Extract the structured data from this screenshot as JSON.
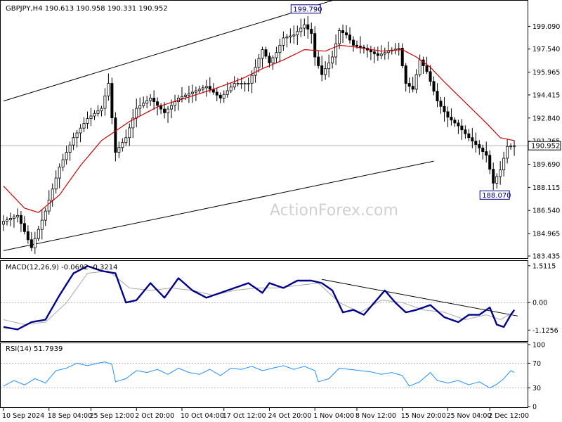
{
  "chart_data": [
    {
      "type": "candlestick",
      "symbol_header": "GBPJPY,H4  190.613 190.958 190.331 190.952",
      "ylim": [
        183.435,
        200.5
      ],
      "y_ticks": [
        "199.090",
        "197.540",
        "195.965",
        "194.415",
        "192.840",
        "191.265",
        "189.690",
        "188.115",
        "186.540",
        "184.965",
        "183.435"
      ],
      "current_price": "190.952",
      "watermark": "ActionForex.com",
      "annotations": [
        {
          "text": "199.790",
          "value": 199.79,
          "index": 86
        },
        {
          "text": "188.070",
          "value": 188.07,
          "index": 140
        }
      ],
      "channel_upper": [
        {
          "index": 0,
          "value": 194.0
        },
        {
          "index": 118,
          "value": 202.6
        }
      ],
      "channel_lower": [
        {
          "index": 0,
          "value": 183.8
        },
        {
          "index": 123,
          "value": 189.9
        }
      ],
      "ma_color": "#cc0000",
      "series_color": "#000000",
      "waypoints": [
        [
          0,
          185.8
        ],
        [
          4,
          186.2
        ],
        [
          8,
          184.0
        ],
        [
          12,
          186.5
        ],
        [
          16,
          189.5
        ],
        [
          20,
          191.5
        ],
        [
          24,
          192.8
        ],
        [
          28,
          193.5
        ],
        [
          30,
          195.2
        ],
        [
          32,
          190.5
        ],
        [
          35,
          191.5
        ],
        [
          38,
          193.5
        ],
        [
          42,
          194.2
        ],
        [
          46,
          193.2
        ],
        [
          50,
          194.2
        ],
        [
          54,
          194.6
        ],
        [
          58,
          195.0
        ],
        [
          62,
          194.2
        ],
        [
          66,
          195.2
        ],
        [
          70,
          195.2
        ],
        [
          72,
          196.3
        ],
        [
          74,
          197.5
        ],
        [
          76,
          196.6
        ],
        [
          78,
          197.3
        ],
        [
          80,
          198.3
        ],
        [
          83,
          198.5
        ],
        [
          86,
          199.2
        ],
        [
          88,
          198.6
        ],
        [
          89,
          197.0
        ],
        [
          91,
          195.8
        ],
        [
          94,
          197.0
        ],
        [
          96,
          198.8
        ],
        [
          98,
          198.5
        ],
        [
          100,
          197.8
        ],
        [
          103,
          197.6
        ],
        [
          107,
          197.1
        ],
        [
          110,
          197.4
        ],
        [
          113,
          197.6
        ],
        [
          115,
          195.2
        ],
        [
          117,
          194.8
        ],
        [
          119,
          196.8
        ],
        [
          121,
          196.0
        ],
        [
          124,
          194.0
        ],
        [
          127,
          192.9
        ],
        [
          130,
          192.3
        ],
        [
          133,
          191.5
        ],
        [
          136,
          190.8
        ],
        [
          138,
          190.3
        ],
        [
          140,
          188.4
        ],
        [
          142,
          189.3
        ],
        [
          144,
          190.9
        ],
        [
          146,
          190.95
        ]
      ],
      "ma_waypoints": [
        [
          0,
          188.2
        ],
        [
          6,
          186.7
        ],
        [
          10,
          186.4
        ],
        [
          16,
          187.6
        ],
        [
          22,
          189.6
        ],
        [
          28,
          191.3
        ],
        [
          36,
          192.6
        ],
        [
          44,
          193.6
        ],
        [
          52,
          194.2
        ],
        [
          60,
          194.8
        ],
        [
          68,
          195.5
        ],
        [
          74,
          196.2
        ],
        [
          80,
          196.8
        ],
        [
          86,
          197.5
        ],
        [
          92,
          197.4
        ],
        [
          96,
          197.8
        ],
        [
          100,
          197.7
        ],
        [
          108,
          197.4
        ],
        [
          114,
          197.5
        ],
        [
          118,
          197.0
        ],
        [
          122,
          196.3
        ],
        [
          126,
          195.3
        ],
        [
          132,
          193.9
        ],
        [
          138,
          192.5
        ],
        [
          142,
          191.5
        ],
        [
          146,
          191.3
        ]
      ]
    },
    {
      "type": "line",
      "label": "MACD(12,26,9) -0.0692 -0.3214",
      "ylim": [
        -1.55,
        1.65
      ],
      "y_ticks": [
        "1.5115",
        "0.00",
        "-1.1256"
      ],
      "zero_level": 0.0,
      "trendline": [
        {
          "index": 91,
          "value": 0.95
        },
        {
          "index": 147,
          "value": -0.55
        }
      ],
      "series": [
        {
          "role": "macd",
          "color": "#00008b",
          "waypoints": [
            [
              0,
              -1.0
            ],
            [
              4,
              -1.1
            ],
            [
              8,
              -0.8
            ],
            [
              12,
              -0.7
            ],
            [
              16,
              0.3
            ],
            [
              20,
              1.2
            ],
            [
              24,
              1.5
            ],
            [
              28,
              1.3
            ],
            [
              32,
              1.2
            ],
            [
              35,
              0.0
            ],
            [
              38,
              0.1
            ],
            [
              42,
              0.8
            ],
            [
              46,
              0.2
            ],
            [
              50,
              1.0
            ],
            [
              54,
              0.5
            ],
            [
              58,
              0.2
            ],
            [
              62,
              0.4
            ],
            [
              66,
              0.6
            ],
            [
              70,
              0.8
            ],
            [
              74,
              0.4
            ],
            [
              76,
              0.8
            ],
            [
              80,
              0.6
            ],
            [
              84,
              0.9
            ],
            [
              88,
              0.9
            ],
            [
              91,
              0.8
            ],
            [
              94,
              0.5
            ],
            [
              97,
              -0.4
            ],
            [
              100,
              -0.3
            ],
            [
              103,
              -0.5
            ],
            [
              106,
              0.0
            ],
            [
              109,
              0.5
            ],
            [
              112,
              0.0
            ],
            [
              115,
              -0.4
            ],
            [
              118,
              -0.3
            ],
            [
              122,
              -0.1
            ],
            [
              126,
              -0.6
            ],
            [
              130,
              -0.8
            ],
            [
              133,
              -0.5
            ],
            [
              136,
              -0.5
            ],
            [
              139,
              -0.2
            ],
            [
              141,
              -0.9
            ],
            [
              143,
              -1.0
            ],
            [
              145,
              -0.5
            ],
            [
              147,
              -0.1
            ]
          ]
        },
        {
          "role": "signal",
          "color": "#a9a9a9",
          "waypoints": [
            [
              0,
              -0.7
            ],
            [
              6,
              -0.9
            ],
            [
              12,
              -0.8
            ],
            [
              18,
              0.0
            ],
            [
              24,
              1.2
            ],
            [
              30,
              1.3
            ],
            [
              36,
              0.6
            ],
            [
              42,
              0.5
            ],
            [
              48,
              0.6
            ],
            [
              54,
              0.5
            ],
            [
              60,
              0.3
            ],
            [
              66,
              0.5
            ],
            [
              72,
              0.6
            ],
            [
              78,
              0.6
            ],
            [
              84,
              0.7
            ],
            [
              90,
              0.8
            ],
            [
              96,
              0.0
            ],
            [
              102,
              -0.4
            ],
            [
              108,
              0.1
            ],
            [
              114,
              0.0
            ],
            [
              120,
              -0.3
            ],
            [
              126,
              -0.4
            ],
            [
              132,
              -0.7
            ],
            [
              138,
              -0.5
            ],
            [
              142,
              -0.7
            ],
            [
              147,
              -0.3
            ]
          ]
        }
      ]
    },
    {
      "type": "line",
      "label": "RSI(14) 51.7939",
      "ylim": [
        0,
        100
      ],
      "y_ticks": [
        "100",
        "70",
        "30",
        "0"
      ],
      "levels": [
        70,
        30
      ],
      "series": [
        {
          "role": "rsi",
          "color": "#1e90ff",
          "waypoints": [
            [
              0,
              33
            ],
            [
              3,
              42
            ],
            [
              6,
              35
            ],
            [
              9,
              45
            ],
            [
              12,
              38
            ],
            [
              15,
              58
            ],
            [
              18,
              62
            ],
            [
              21,
              70
            ],
            [
              24,
              66
            ],
            [
              27,
              70
            ],
            [
              29,
              72
            ],
            [
              31,
              68
            ],
            [
              32,
              40
            ],
            [
              35,
              45
            ],
            [
              38,
              58
            ],
            [
              41,
              55
            ],
            [
              44,
              60
            ],
            [
              47,
              52
            ],
            [
              50,
              62
            ],
            [
              53,
              55
            ],
            [
              56,
              52
            ],
            [
              59,
              60
            ],
            [
              62,
              50
            ],
            [
              65,
              62
            ],
            [
              68,
              60
            ],
            [
              71,
              65
            ],
            [
              74,
              58
            ],
            [
              77,
              62
            ],
            [
              80,
              66
            ],
            [
              83,
              60
            ],
            [
              86,
              65
            ],
            [
              89,
              58
            ],
            [
              90,
              40
            ],
            [
              93,
              45
            ],
            [
              96,
              62
            ],
            [
              99,
              60
            ],
            [
              102,
              58
            ],
            [
              105,
              56
            ],
            [
              108,
              52
            ],
            [
              111,
              55
            ],
            [
              114,
              50
            ],
            [
              116,
              33
            ],
            [
              119,
              40
            ],
            [
              122,
              55
            ],
            [
              124,
              42
            ],
            [
              127,
              38
            ],
            [
              130,
              42
            ],
            [
              133,
              35
            ],
            [
              136,
              40
            ],
            [
              139,
              30
            ],
            [
              141,
              36
            ],
            [
              143,
              45
            ],
            [
              145,
              58
            ],
            [
              147,
              52
            ]
          ]
        }
      ]
    },
    {
      "type": "x_axis",
      "labels": [
        {
          "text": "10 Sep 2024",
          "index": 0
        },
        {
          "text": "18 Sep 04:00",
          "index": 13
        },
        {
          "text": "25 Sep 12:00",
          "index": 25
        },
        {
          "text": "2 Oct 20:00",
          "index": 38
        },
        {
          "text": "10 Oct 04:00",
          "index": 51
        },
        {
          "text": "17 Oct 12:00",
          "index": 63
        },
        {
          "text": "24 Oct 20:00",
          "index": 76
        },
        {
          "text": "1 Nov 04:00",
          "index": 89
        },
        {
          "text": "8 Nov 12:00",
          "index": 101
        },
        {
          "text": "15 Nov 20:00",
          "index": 114
        },
        {
          "text": "25 Nov 04:00",
          "index": 127
        },
        {
          "text": "2 Dec 12:00",
          "index": 139
        }
      ]
    }
  ]
}
